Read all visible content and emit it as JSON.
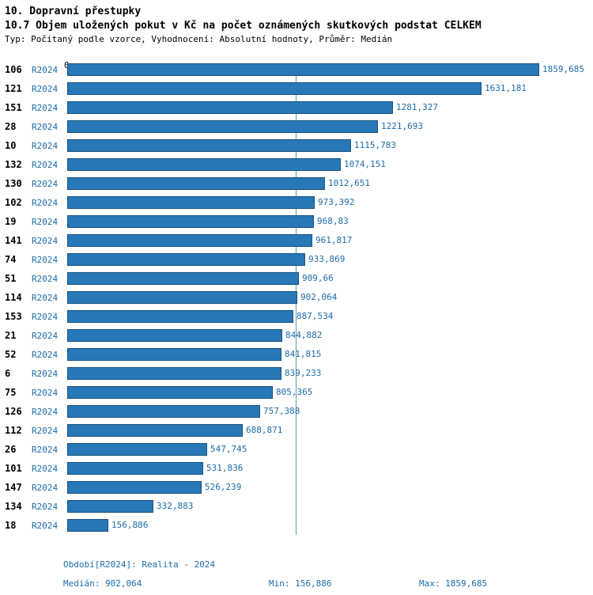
{
  "header": {
    "title": "10. Dopravní přestupky",
    "subtitle": "10.7 Objem uložených pokut v Kč na počet oznámených skutkových podstat CELKEM",
    "meta": "Typ: Počítaný podle vzorce, Vyhodnocení: Absolutní hodnoty, Průměr: Medián"
  },
  "chart_data": {
    "type": "bar",
    "orientation": "horizontal",
    "title": "10.7 Objem uložených pokut v Kč na počet oznámených skutkových podstat CELKEM",
    "axis_zero_label": "0",
    "axis_max": 1859.685,
    "median_value": 902.064,
    "bar_color": "#2878b8",
    "bar_border_color": "#17537e",
    "median_line_color": "#5f9ea8",
    "grid": false,
    "legend_position": "none",
    "series_name": "R2024",
    "rows": [
      {
        "category": "106",
        "series": "R2024",
        "value": 1859.685,
        "label": "1859,685"
      },
      {
        "category": "121",
        "series": "R2024",
        "value": 1631.181,
        "label": "1631,181"
      },
      {
        "category": "151",
        "series": "R2024",
        "value": 1281.327,
        "label": "1281,327"
      },
      {
        "category": "28",
        "series": "R2024",
        "value": 1221.693,
        "label": "1221,693"
      },
      {
        "category": "10",
        "series": "R2024",
        "value": 1115.783,
        "label": "1115,783"
      },
      {
        "category": "132",
        "series": "R2024",
        "value": 1074.151,
        "label": "1074,151"
      },
      {
        "category": "130",
        "series": "R2024",
        "value": 1012.651,
        "label": "1012,651"
      },
      {
        "category": "102",
        "series": "R2024",
        "value": 973.392,
        "label": "973,392"
      },
      {
        "category": "19",
        "series": "R2024",
        "value": 968.83,
        "label": "968,83"
      },
      {
        "category": "141",
        "series": "R2024",
        "value": 961.817,
        "label": "961,817"
      },
      {
        "category": "74",
        "series": "R2024",
        "value": 933.869,
        "label": "933,869"
      },
      {
        "category": "51",
        "series": "R2024",
        "value": 909.66,
        "label": "909,66"
      },
      {
        "category": "114",
        "series": "R2024",
        "value": 902.064,
        "label": "902,064"
      },
      {
        "category": "153",
        "series": "R2024",
        "value": 887.534,
        "label": "887,534"
      },
      {
        "category": "21",
        "series": "R2024",
        "value": 844.882,
        "label": "844,882"
      },
      {
        "category": "52",
        "series": "R2024",
        "value": 841.815,
        "label": "841,815"
      },
      {
        "category": "6",
        "series": "R2024",
        "value": 839.233,
        "label": "839,233"
      },
      {
        "category": "75",
        "series": "R2024",
        "value": 805.365,
        "label": "805,365"
      },
      {
        "category": "126",
        "series": "R2024",
        "value": 757.388,
        "label": "757,388"
      },
      {
        "category": "112",
        "series": "R2024",
        "value": 688.871,
        "label": "688,871"
      },
      {
        "category": "26",
        "series": "R2024",
        "value": 547.745,
        "label": "547,745"
      },
      {
        "category": "101",
        "series": "R2024",
        "value": 531.836,
        "label": "531,836"
      },
      {
        "category": "147",
        "series": "R2024",
        "value": 526.239,
        "label": "526,239"
      },
      {
        "category": "134",
        "series": "R2024",
        "value": 332.883,
        "label": "332,883"
      },
      {
        "category": "18",
        "series": "R2024",
        "value": 156.886,
        "label": "156,886"
      }
    ]
  },
  "footer": {
    "period": "Období[R2024]: Realita - 2024",
    "median": "Medián: 902,064",
    "min": "Min: 156,886",
    "max": "Max: 1859,685"
  }
}
